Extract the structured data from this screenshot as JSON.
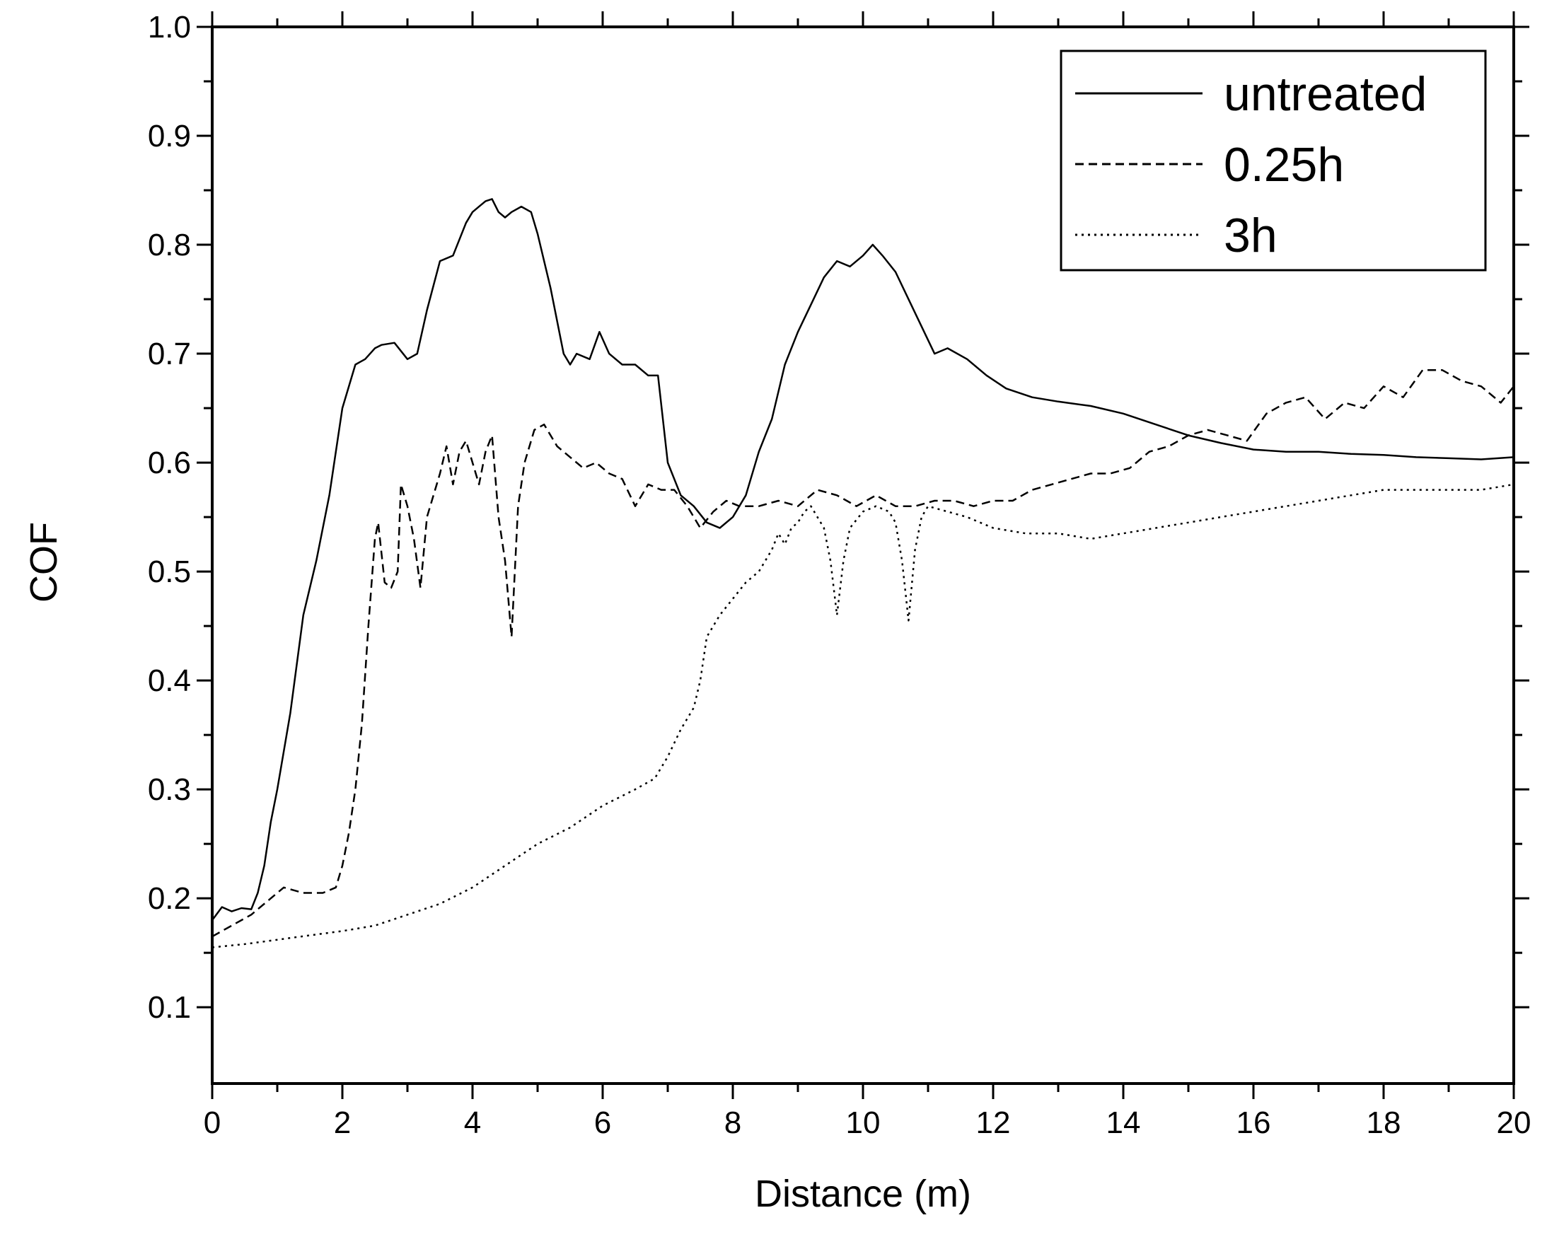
{
  "chart_data": {
    "type": "line",
    "title": "",
    "xlabel": "Distance (m)",
    "ylabel": "COF",
    "xlim": [
      0,
      20
    ],
    "ylim": [
      0.03,
      1.0
    ],
    "x_ticks": [
      "0",
      "2",
      "4",
      "6",
      "8",
      "10",
      "12",
      "14",
      "16",
      "18",
      "20"
    ],
    "y_ticks": [
      "0.1",
      "0.2",
      "0.3",
      "0.4",
      "0.5",
      "0.6",
      "0.7",
      "0.8",
      "0.9",
      "1.0"
    ],
    "grid": false,
    "legend_position": "top-right",
    "series": [
      {
        "name": "untreated",
        "dash": "solid",
        "x": [
          0.0,
          0.15,
          0.3,
          0.45,
          0.6,
          0.7,
          0.8,
          0.9,
          1.0,
          1.2,
          1.4,
          1.6,
          1.8,
          2.0,
          2.2,
          2.35,
          2.5,
          2.6,
          2.8,
          3.0,
          3.15,
          3.3,
          3.5,
          3.7,
          3.9,
          4.0,
          4.1,
          4.2,
          4.3,
          4.4,
          4.5,
          4.6,
          4.75,
          4.9,
          5.0,
          5.2,
          5.4,
          5.5,
          5.6,
          5.8,
          5.95,
          6.1,
          6.3,
          6.5,
          6.7,
          6.85,
          7.0,
          7.2,
          7.4,
          7.6,
          7.8,
          8.0,
          8.2,
          8.4,
          8.6,
          8.8,
          9.0,
          9.2,
          9.4,
          9.6,
          9.8,
          10.0,
          10.15,
          10.3,
          10.5,
          10.7,
          10.9,
          11.1,
          11.3,
          11.6,
          11.9,
          12.2,
          12.6,
          13.0,
          13.5,
          14.0,
          14.5,
          15.0,
          15.5,
          16.0,
          16.5,
          17.0,
          17.5,
          18.0,
          18.5,
          19.0,
          19.5,
          20.0
        ],
        "values": [
          0.18,
          0.192,
          0.188,
          0.191,
          0.19,
          0.205,
          0.23,
          0.27,
          0.3,
          0.37,
          0.46,
          0.51,
          0.57,
          0.65,
          0.69,
          0.695,
          0.705,
          0.708,
          0.71,
          0.695,
          0.7,
          0.74,
          0.785,
          0.79,
          0.82,
          0.83,
          0.835,
          0.84,
          0.842,
          0.83,
          0.825,
          0.83,
          0.835,
          0.83,
          0.81,
          0.76,
          0.7,
          0.69,
          0.7,
          0.695,
          0.72,
          0.7,
          0.69,
          0.69,
          0.68,
          0.68,
          0.6,
          0.57,
          0.56,
          0.545,
          0.54,
          0.55,
          0.57,
          0.61,
          0.64,
          0.69,
          0.72,
          0.745,
          0.77,
          0.785,
          0.78,
          0.79,
          0.8,
          0.79,
          0.775,
          0.75,
          0.725,
          0.7,
          0.705,
          0.695,
          0.68,
          0.668,
          0.66,
          0.656,
          0.652,
          0.645,
          0.635,
          0.625,
          0.618,
          0.612,
          0.61,
          0.61,
          0.608,
          0.607,
          0.605,
          0.604,
          0.603,
          0.605
        ]
      },
      {
        "name": "0.25h",
        "dash": "dashed",
        "x": [
          0.0,
          0.3,
          0.6,
          0.9,
          1.1,
          1.4,
          1.7,
          1.9,
          2.0,
          2.1,
          2.2,
          2.3,
          2.4,
          2.5,
          2.55,
          2.65,
          2.75,
          2.85,
          2.9,
          3.0,
          3.1,
          3.2,
          3.3,
          3.4,
          3.5,
          3.6,
          3.7,
          3.8,
          3.9,
          4.0,
          4.1,
          4.2,
          4.3,
          4.4,
          4.5,
          4.6,
          4.7,
          4.8,
          4.95,
          5.1,
          5.3,
          5.5,
          5.7,
          5.9,
          6.1,
          6.3,
          6.5,
          6.7,
          6.9,
          7.1,
          7.3,
          7.5,
          7.7,
          7.9,
          8.1,
          8.4,
          8.7,
          9.0,
          9.3,
          9.6,
          9.9,
          10.2,
          10.5,
          10.8,
          11.1,
          11.4,
          11.7,
          12.0,
          12.3,
          12.6,
          12.9,
          13.2,
          13.5,
          13.8,
          14.1,
          14.4,
          14.7,
          15.0,
          15.3,
          15.6,
          15.9,
          16.2,
          16.5,
          16.8,
          17.1,
          17.4,
          17.7,
          18.0,
          18.3,
          18.6,
          18.9,
          19.2,
          19.5,
          19.8,
          20.0
        ],
        "values": [
          0.165,
          0.175,
          0.185,
          0.2,
          0.21,
          0.205,
          0.205,
          0.21,
          0.23,
          0.26,
          0.3,
          0.36,
          0.45,
          0.53,
          0.545,
          0.49,
          0.485,
          0.5,
          0.58,
          0.56,
          0.53,
          0.485,
          0.55,
          0.57,
          0.59,
          0.615,
          0.58,
          0.61,
          0.62,
          0.6,
          0.58,
          0.61,
          0.625,
          0.55,
          0.51,
          0.44,
          0.56,
          0.6,
          0.63,
          0.635,
          0.615,
          0.605,
          0.595,
          0.6,
          0.59,
          0.585,
          0.56,
          0.58,
          0.575,
          0.575,
          0.56,
          0.54,
          0.555,
          0.565,
          0.56,
          0.56,
          0.565,
          0.56,
          0.575,
          0.57,
          0.56,
          0.57,
          0.56,
          0.56,
          0.565,
          0.565,
          0.56,
          0.565,
          0.565,
          0.575,
          0.58,
          0.585,
          0.59,
          0.59,
          0.595,
          0.61,
          0.615,
          0.625,
          0.63,
          0.625,
          0.62,
          0.645,
          0.655,
          0.66,
          0.64,
          0.655,
          0.65,
          0.67,
          0.66,
          0.685,
          0.685,
          0.675,
          0.67,
          0.655,
          0.67
        ]
      },
      {
        "name": "3h",
        "dash": "dotted",
        "x": [
          0.0,
          0.5,
          1.0,
          1.5,
          2.0,
          2.5,
          3.0,
          3.5,
          4.0,
          4.5,
          5.0,
          5.5,
          6.0,
          6.5,
          6.8,
          7.0,
          7.2,
          7.4,
          7.5,
          7.6,
          7.8,
          8.0,
          8.2,
          8.4,
          8.6,
          8.7,
          8.8,
          8.9,
          9.0,
          9.1,
          9.2,
          9.3,
          9.4,
          9.5,
          9.6,
          9.7,
          9.8,
          10.0,
          10.2,
          10.4,
          10.5,
          10.6,
          10.7,
          10.8,
          10.9,
          11.0,
          11.3,
          11.6,
          12.0,
          12.5,
          13.0,
          13.5,
          14.0,
          14.5,
          15.0,
          15.5,
          16.0,
          16.5,
          17.0,
          17.5,
          18.0,
          18.5,
          19.0,
          19.5,
          20.0
        ],
        "values": [
          0.155,
          0.158,
          0.162,
          0.166,
          0.17,
          0.175,
          0.185,
          0.195,
          0.21,
          0.23,
          0.25,
          0.265,
          0.285,
          0.3,
          0.31,
          0.33,
          0.355,
          0.375,
          0.4,
          0.44,
          0.46,
          0.475,
          0.49,
          0.5,
          0.52,
          0.535,
          0.525,
          0.54,
          0.545,
          0.555,
          0.56,
          0.55,
          0.54,
          0.51,
          0.46,
          0.51,
          0.54,
          0.555,
          0.56,
          0.555,
          0.545,
          0.51,
          0.455,
          0.52,
          0.55,
          0.56,
          0.555,
          0.55,
          0.54,
          0.535,
          0.535,
          0.53,
          0.535,
          0.54,
          0.545,
          0.55,
          0.555,
          0.56,
          0.565,
          0.57,
          0.575,
          0.575,
          0.575,
          0.575,
          0.58
        ]
      }
    ]
  }
}
